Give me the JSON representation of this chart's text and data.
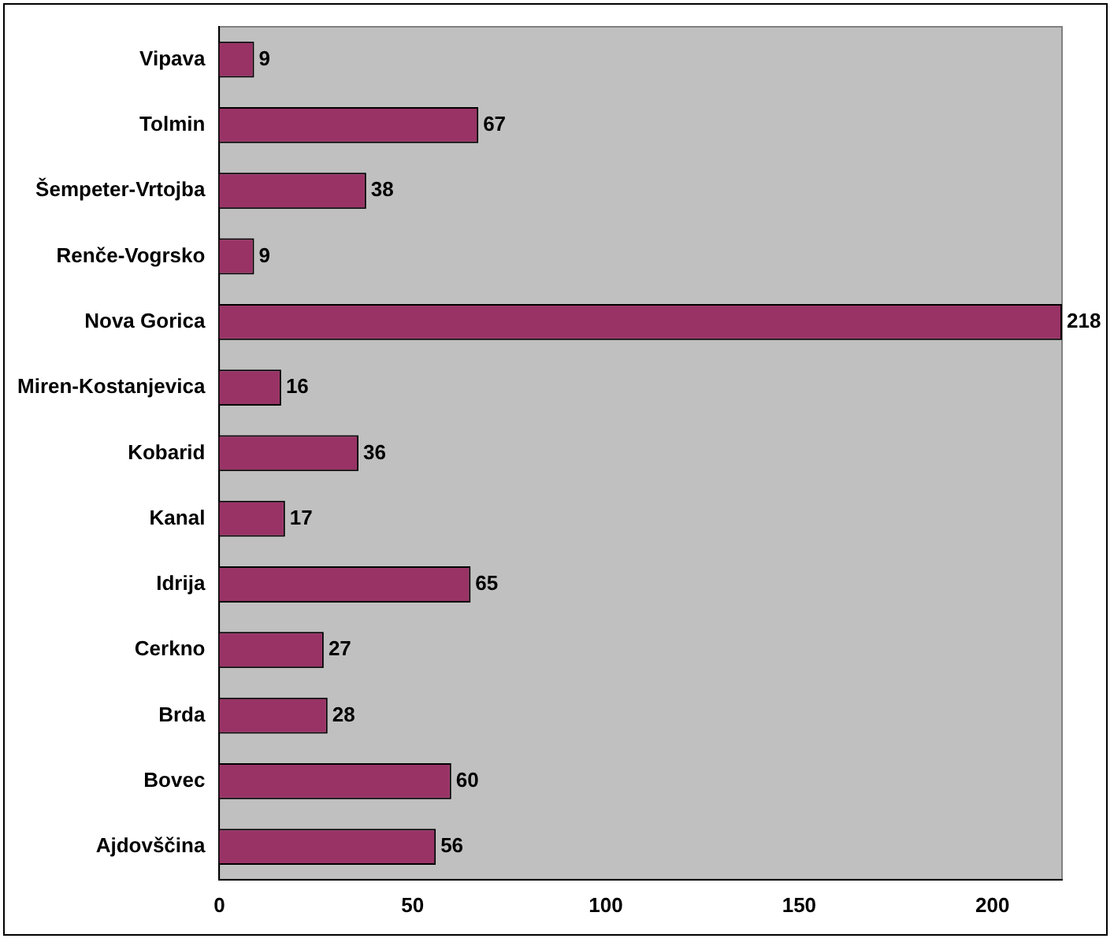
{
  "chart_data": {
    "type": "bar",
    "orientation": "horizontal",
    "categories": [
      "Vipava",
      "Tolmin",
      "Šempeter-Vrtojba",
      "Renče-Vogrsko",
      "Nova Gorica",
      "Miren-Kostanjevica",
      "Kobarid",
      "Kanal",
      "Idrija",
      "Cerkno",
      "Brda",
      "Bovec",
      "Ajdovščina"
    ],
    "values": [
      9,
      67,
      38,
      9,
      218,
      16,
      36,
      17,
      65,
      27,
      28,
      60,
      56
    ],
    "color": "#993366",
    "xlim": [
      0,
      218
    ],
    "xticks": [
      0,
      50,
      100,
      150,
      200
    ],
    "data_labels": true,
    "grid": false,
    "legend": false
  }
}
